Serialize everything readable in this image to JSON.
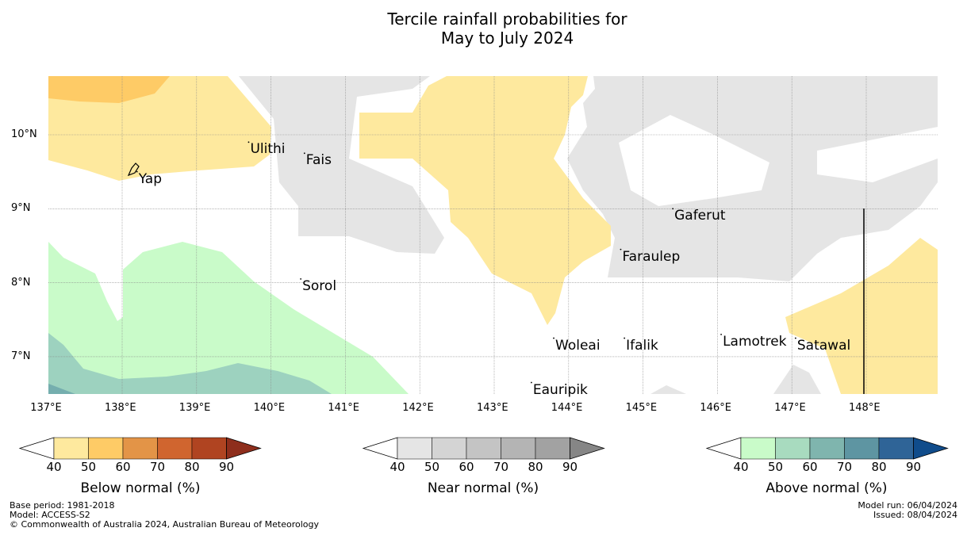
{
  "title": {
    "line1": "Tercile rainfall probabilities for",
    "line2": "May to July 2024"
  },
  "map": {
    "lon_range": [
      137,
      149
    ],
    "lat_range": [
      6.5,
      10.8
    ],
    "x_ticks": [
      {
        "value": 137,
        "label": "137°E"
      },
      {
        "value": 138,
        "label": "138°E"
      },
      {
        "value": 139,
        "label": "139°E"
      },
      {
        "value": 140,
        "label": "140°E"
      },
      {
        "value": 141,
        "label": "141°E"
      },
      {
        "value": 142,
        "label": "142°E"
      },
      {
        "value": 143,
        "label": "143°E"
      },
      {
        "value": 144,
        "label": "144°E"
      },
      {
        "value": 145,
        "label": "145°E"
      },
      {
        "value": 146,
        "label": "146°E"
      },
      {
        "value": 147,
        "label": "147°E"
      },
      {
        "value": 148,
        "label": "148°E"
      }
    ],
    "y_ticks": [
      {
        "value": 10,
        "label": "10°N"
      },
      {
        "value": 9,
        "label": "9°N"
      },
      {
        "value": 8,
        "label": "8°N"
      },
      {
        "value": 7,
        "label": "7°N"
      }
    ],
    "places": [
      {
        "name": "Ulithi",
        "lon": 139.7,
        "lat": 9.9
      },
      {
        "name": "Fais",
        "lon": 140.45,
        "lat": 9.75
      },
      {
        "name": "Yap",
        "lon": 138.2,
        "lat": 9.5
      },
      {
        "name": "Gaferut",
        "lon": 145.4,
        "lat": 9.0
      },
      {
        "name": "Faraulep",
        "lon": 144.7,
        "lat": 8.45
      },
      {
        "name": "Sorol",
        "lon": 140.4,
        "lat": 8.05
      },
      {
        "name": "Woleai",
        "lon": 143.8,
        "lat": 7.25
      },
      {
        "name": "Ifalik",
        "lon": 144.75,
        "lat": 7.25
      },
      {
        "name": "Lamotrek",
        "lon": 146.05,
        "lat": 7.3
      },
      {
        "name": "Satawal",
        "lon": 147.05,
        "lat": 7.25
      },
      {
        "name": "Eauripik",
        "lon": 143.5,
        "lat": 6.65
      }
    ],
    "colors": {
      "below_40": "#fee99e",
      "below_50": "#fecb66",
      "near_40": "#e5e5e5",
      "above_40": "#c9fbc9",
      "above_50": "#9dd2bf",
      "above_60": "#75aeae",
      "grid": "#888888"
    }
  },
  "colorbars": [
    {
      "label": "Below normal (%)",
      "ticks": [
        "40",
        "50",
        "60",
        "70",
        "80",
        "90"
      ],
      "colors": [
        "#fee99e",
        "#fecb66",
        "#e39447",
        "#d0652f",
        "#b04421",
        "#8e2e1c"
      ]
    },
    {
      "label": "Near normal (%)",
      "ticks": [
        "40",
        "50",
        "60",
        "70",
        "80",
        "90"
      ],
      "colors": [
        "#e5e5e5",
        "#d4d4d4",
        "#c4c4c4",
        "#b4b4b4",
        "#a2a2a2",
        "#868686"
      ]
    },
    {
      "label": "Above normal (%)",
      "ticks": [
        "40",
        "50",
        "60",
        "70",
        "80",
        "90"
      ],
      "colors": [
        "#c9fbc9",
        "#a8dbbf",
        "#7fb5ae",
        "#5e95a2",
        "#2f6497",
        "#104c8b"
      ]
    }
  ],
  "footer": {
    "base_period": "Base period: 1981-2018",
    "model": "Model: ACCESS-S2",
    "copyright": "© Commonwealth of Australia 2024, Australian Bureau of Meteorology",
    "model_run": "Model run: 06/04/2024",
    "issued": "Issued: 08/04/2024"
  }
}
